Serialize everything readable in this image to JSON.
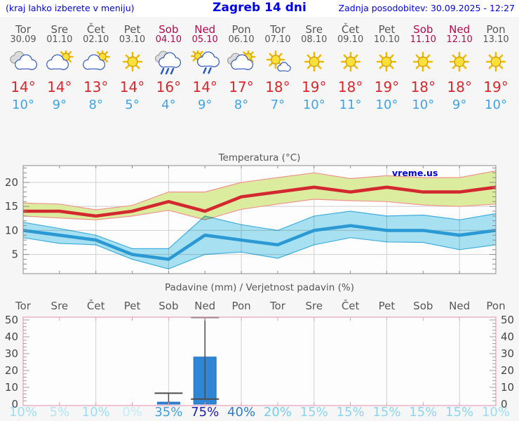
{
  "header": {
    "left": "(kraj lahko izberete v meniju)",
    "title": "Zagreb 14 dni",
    "right": "Zadnja posodobitev: 30.09.2025 - 12:27"
  },
  "watermark": "vreme.us",
  "colors": {
    "header_blue": "#0000e6",
    "weekday_gray": "#575757",
    "weekend_red": "#b5094f",
    "tmax_red": "#d8282e",
    "tmin_blue": "#3fa3e8",
    "bar_blue": "#2e86d5",
    "band_max": "#dcec9e",
    "band_min": "#a8e2f2",
    "plot_border_temp": "#8c8c8c",
    "plot_border_precip": "#eaa0b8",
    "gridline": "#d0d0d0"
  },
  "days": [
    {
      "name": "Tor",
      "date": "30.09",
      "weekend": false,
      "icon": "cloudy",
      "tmax": "14°",
      "tmin": "10°"
    },
    {
      "name": "Sre",
      "date": "01.10",
      "weekend": false,
      "icon": "suncloud",
      "tmax": "14°",
      "tmin": "9°"
    },
    {
      "name": "Čet",
      "date": "02.10",
      "weekend": false,
      "icon": "suncloud",
      "tmax": "13°",
      "tmin": "8°"
    },
    {
      "name": "Pet",
      "date": "03.10",
      "weekend": false,
      "icon": "sunny",
      "tmax": "14°",
      "tmin": "5°"
    },
    {
      "name": "Sob",
      "date": "04.10",
      "weekend": true,
      "icon": "rain",
      "tmax": "16°",
      "tmin": "4°"
    },
    {
      "name": "Ned",
      "date": "05.10",
      "weekend": true,
      "icon": "sunrain",
      "tmax": "14°",
      "tmin": "9°"
    },
    {
      "name": "Pon",
      "date": "06.10",
      "weekend": false,
      "icon": "cloudsun",
      "tmax": "17°",
      "tmin": "8°"
    },
    {
      "name": "Tor",
      "date": "07.10",
      "weekend": false,
      "icon": "sunsmallcloud",
      "tmax": "18°",
      "tmin": "7°"
    },
    {
      "name": "Sre",
      "date": "08.10",
      "weekend": false,
      "icon": "sunny",
      "tmax": "19°",
      "tmin": "10°"
    },
    {
      "name": "Čet",
      "date": "09.10",
      "weekend": false,
      "icon": "sunny",
      "tmax": "18°",
      "tmin": "11°"
    },
    {
      "name": "Pet",
      "date": "10.10",
      "weekend": false,
      "icon": "sunny",
      "tmax": "19°",
      "tmin": "10°"
    },
    {
      "name": "Sob",
      "date": "11.10",
      "weekend": true,
      "icon": "sunny",
      "tmax": "18°",
      "tmin": "10°"
    },
    {
      "name": "Ned",
      "date": "12.10",
      "weekend": true,
      "icon": "sunny",
      "tmax": "18°",
      "tmin": "9°"
    },
    {
      "name": "Pon",
      "date": "13.10",
      "weekend": false,
      "icon": "sunny",
      "tmax": "19°",
      "tmin": "10°"
    }
  ],
  "chart_data": [
    {
      "type": "line",
      "title": "Temperatura (°C)",
      "x_labels": [
        "Tor",
        "Sre",
        "Čet",
        "Pet",
        "Sob",
        "Ned",
        "Pon",
        "Tor",
        "Sre",
        "Čet",
        "Pet",
        "Sob",
        "Ned",
        "Pon"
      ],
      "ylim": [
        1.0,
        23.5
      ],
      "yticks": [
        5,
        10,
        15,
        20
      ],
      "grid": "on",
      "legend_position": "none",
      "series": [
        {
          "name": "max-temperature",
          "color": "#d32830",
          "band_color": "#dcec9e",
          "band_edge_color": "#f0938f",
          "values": [
            14,
            14,
            13,
            14,
            16,
            14,
            17,
            18,
            19,
            18,
            19,
            18,
            18,
            19
          ],
          "band_upper": [
            15.7,
            15.5,
            14.3,
            15.2,
            18.0,
            18.0,
            20.0,
            21.0,
            22.0,
            20.8,
            21.4,
            21.0,
            21.0,
            22.4
          ],
          "band_lower": [
            13.0,
            12.6,
            12.2,
            13.0,
            14.2,
            12.2,
            14.4,
            15.5,
            16.5,
            16.2,
            16.0,
            15.3,
            15.0,
            15.5
          ]
        },
        {
          "name": "min-temperature",
          "color": "#2b9ad4",
          "band_color": "#a8e2f2",
          "band_edge_color": "#3fb0e0",
          "values": [
            10,
            9,
            8,
            5,
            4,
            9,
            8,
            7,
            10,
            11,
            10,
            10,
            9,
            10
          ],
          "band_upper": [
            11.7,
            10.4,
            9.0,
            6.2,
            6.2,
            13.0,
            11.2,
            10.0,
            13.0,
            14.0,
            13.0,
            13.2,
            12.2,
            13.5
          ],
          "band_lower": [
            8.5,
            7.3,
            7.0,
            4.0,
            2.0,
            5.0,
            5.5,
            4.2,
            7.0,
            8.5,
            7.6,
            7.5,
            6.0,
            7.0
          ]
        }
      ]
    },
    {
      "type": "bar",
      "title": "Padavine (mm) / Verjetnost padavin (%)",
      "categories": [
        "Tor",
        "Sre",
        "Čet",
        "Pet",
        "Sob",
        "Ned",
        "Pon",
        "Tor",
        "Sre",
        "Čet",
        "Pet",
        "Sob",
        "Ned",
        "Pon"
      ],
      "values": [
        0,
        0,
        0,
        0,
        1.2,
        28,
        0,
        0,
        0,
        0,
        0,
        0,
        0,
        0
      ],
      "whiskers": [
        null,
        null,
        null,
        null,
        [
          0,
          6.5
        ],
        [
          3,
          51.5
        ],
        null,
        null,
        null,
        null,
        null,
        null,
        null,
        null
      ],
      "probabilities": [
        "10%",
        "5%",
        "10%",
        "0%",
        "35%",
        "75%",
        "40%",
        "20%",
        "15%",
        "15%",
        "15%",
        "15%",
        "15%",
        "10%"
      ],
      "prob_colors": [
        "#9bdef2",
        "#b0e6f6",
        "#9bdef2",
        "#c4edfa",
        "#3fa0de",
        "#1c20b2",
        "#2c7cd2",
        "#74cdec",
        "#8ad5ef",
        "#8ad5ef",
        "#8ad5ef",
        "#8ad5ef",
        "#8ad5ef",
        "#9bdef2"
      ],
      "ylim": [
        0,
        51.7
      ],
      "yticks": [
        0,
        10,
        20,
        30,
        40,
        50
      ],
      "grid": "vertical-only",
      "bar_color": "#2e86d5"
    }
  ]
}
